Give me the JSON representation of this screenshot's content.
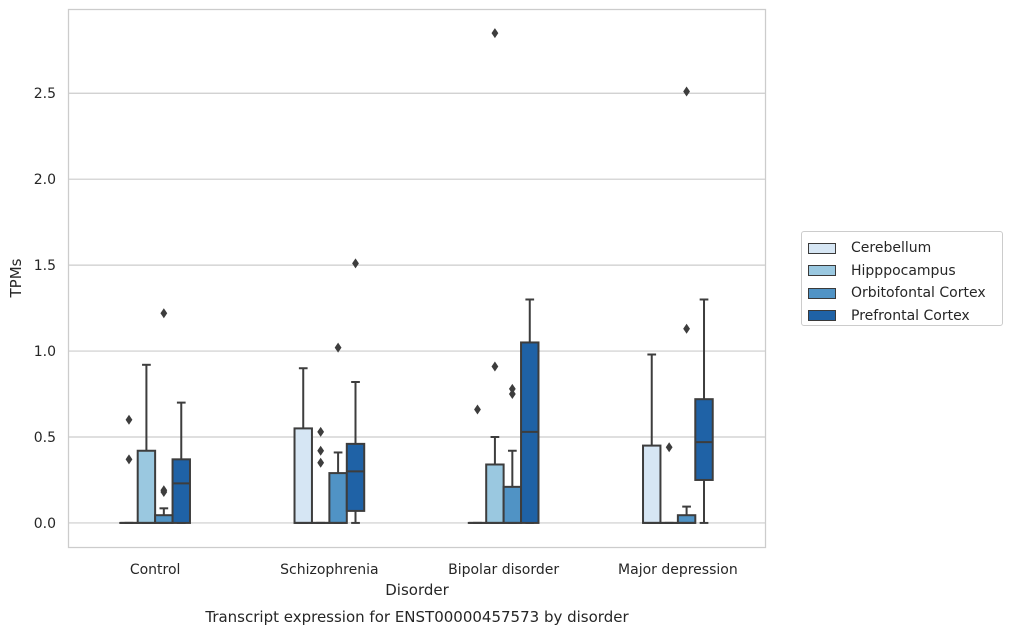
{
  "chart_data": {
    "type": "boxplot",
    "caption": "Transcript expression for ENST00000457573 by disorder",
    "xlabel": "Disorder",
    "ylabel": "TPMs",
    "ylim": [
      -0.14,
      2.99
    ],
    "yticks": [
      0.0,
      0.5,
      1.0,
      1.5,
      2.0,
      2.5
    ],
    "ytick_labels": [
      "0.0",
      "0.5",
      "1.0",
      "1.5",
      "2.0",
      "2.5"
    ],
    "grid": "horizontal",
    "legend_position": "right",
    "categories": [
      "Control",
      "Schizophrenia",
      "Bipolar disorder",
      "Major depression"
    ],
    "series": [
      {
        "name": "Cerebellum",
        "color": "#d6e6f4",
        "boxes": [
          {
            "q1": 0.0,
            "median": 0.0,
            "q3": 0.0,
            "whislo": 0.0,
            "whishi": 0.0,
            "fliers": [
              0.6,
              0.37
            ]
          },
          {
            "q1": 0.0,
            "median": 0.0,
            "q3": 0.55,
            "whislo": 0.0,
            "whishi": 0.9,
            "fliers": []
          },
          {
            "q1": 0.0,
            "median": 0.0,
            "q3": 0.0,
            "whislo": 0.0,
            "whishi": 0.0,
            "fliers": [
              0.66
            ]
          },
          {
            "q1": 0.0,
            "median": 0.0,
            "q3": 0.45,
            "whislo": 0.0,
            "whishi": 0.98,
            "fliers": []
          }
        ]
      },
      {
        "name": "Hipppocampus",
        "color": "#9ac8e0",
        "boxes": [
          {
            "q1": 0.0,
            "median": 0.0,
            "q3": 0.42,
            "whislo": 0.0,
            "whishi": 0.92,
            "fliers": []
          },
          {
            "q1": 0.0,
            "median": 0.0,
            "q3": 0.0,
            "whislo": 0.0,
            "whishi": 0.0,
            "fliers": [
              0.53,
              0.42,
              0.35
            ]
          },
          {
            "q1": 0.0,
            "median": 0.0,
            "q3": 0.34,
            "whislo": 0.0,
            "whishi": 0.5,
            "fliers": [
              0.91,
              2.85
            ]
          },
          {
            "q1": 0.0,
            "median": 0.0,
            "q3": 0.0,
            "whislo": 0.0,
            "whishi": 0.0,
            "fliers": [
              0.44
            ]
          }
        ]
      },
      {
        "name": "Orbitofontal Cortex",
        "color": "#5093c5",
        "boxes": [
          {
            "q1": 0.0,
            "median": 0.0,
            "q3": 0.045,
            "whislo": 0.0,
            "whishi": 0.085,
            "fliers": [
              1.22,
              0.19,
              0.18
            ]
          },
          {
            "q1": 0.0,
            "median": 0.0,
            "q3": 0.29,
            "whislo": 0.0,
            "whishi": 0.41,
            "fliers": [
              1.02
            ]
          },
          {
            "q1": 0.0,
            "median": 0.0,
            "q3": 0.21,
            "whislo": 0.0,
            "whishi": 0.42,
            "fliers": [
              0.78,
              0.75
            ]
          },
          {
            "q1": 0.0,
            "median": 0.0,
            "q3": 0.045,
            "whislo": 0.0,
            "whishi": 0.095,
            "fliers": [
              1.13,
              2.51
            ]
          }
        ]
      },
      {
        "name": "Prefrontal Cortex",
        "color": "#1f62a6",
        "boxes": [
          {
            "q1": 0.0,
            "median": 0.23,
            "q3": 0.37,
            "whislo": 0.0,
            "whishi": 0.7,
            "fliers": []
          },
          {
            "q1": 0.07,
            "median": 0.3,
            "q3": 0.46,
            "whislo": 0.0,
            "whishi": 0.82,
            "fliers": [
              1.51
            ]
          },
          {
            "q1": 0.0,
            "median": 0.53,
            "q3": 1.05,
            "whislo": 0.0,
            "whishi": 1.3,
            "fliers": []
          },
          {
            "q1": 0.25,
            "median": 0.47,
            "q3": 0.72,
            "whislo": 0.0,
            "whishi": 1.3,
            "fliers": []
          }
        ]
      }
    ]
  }
}
